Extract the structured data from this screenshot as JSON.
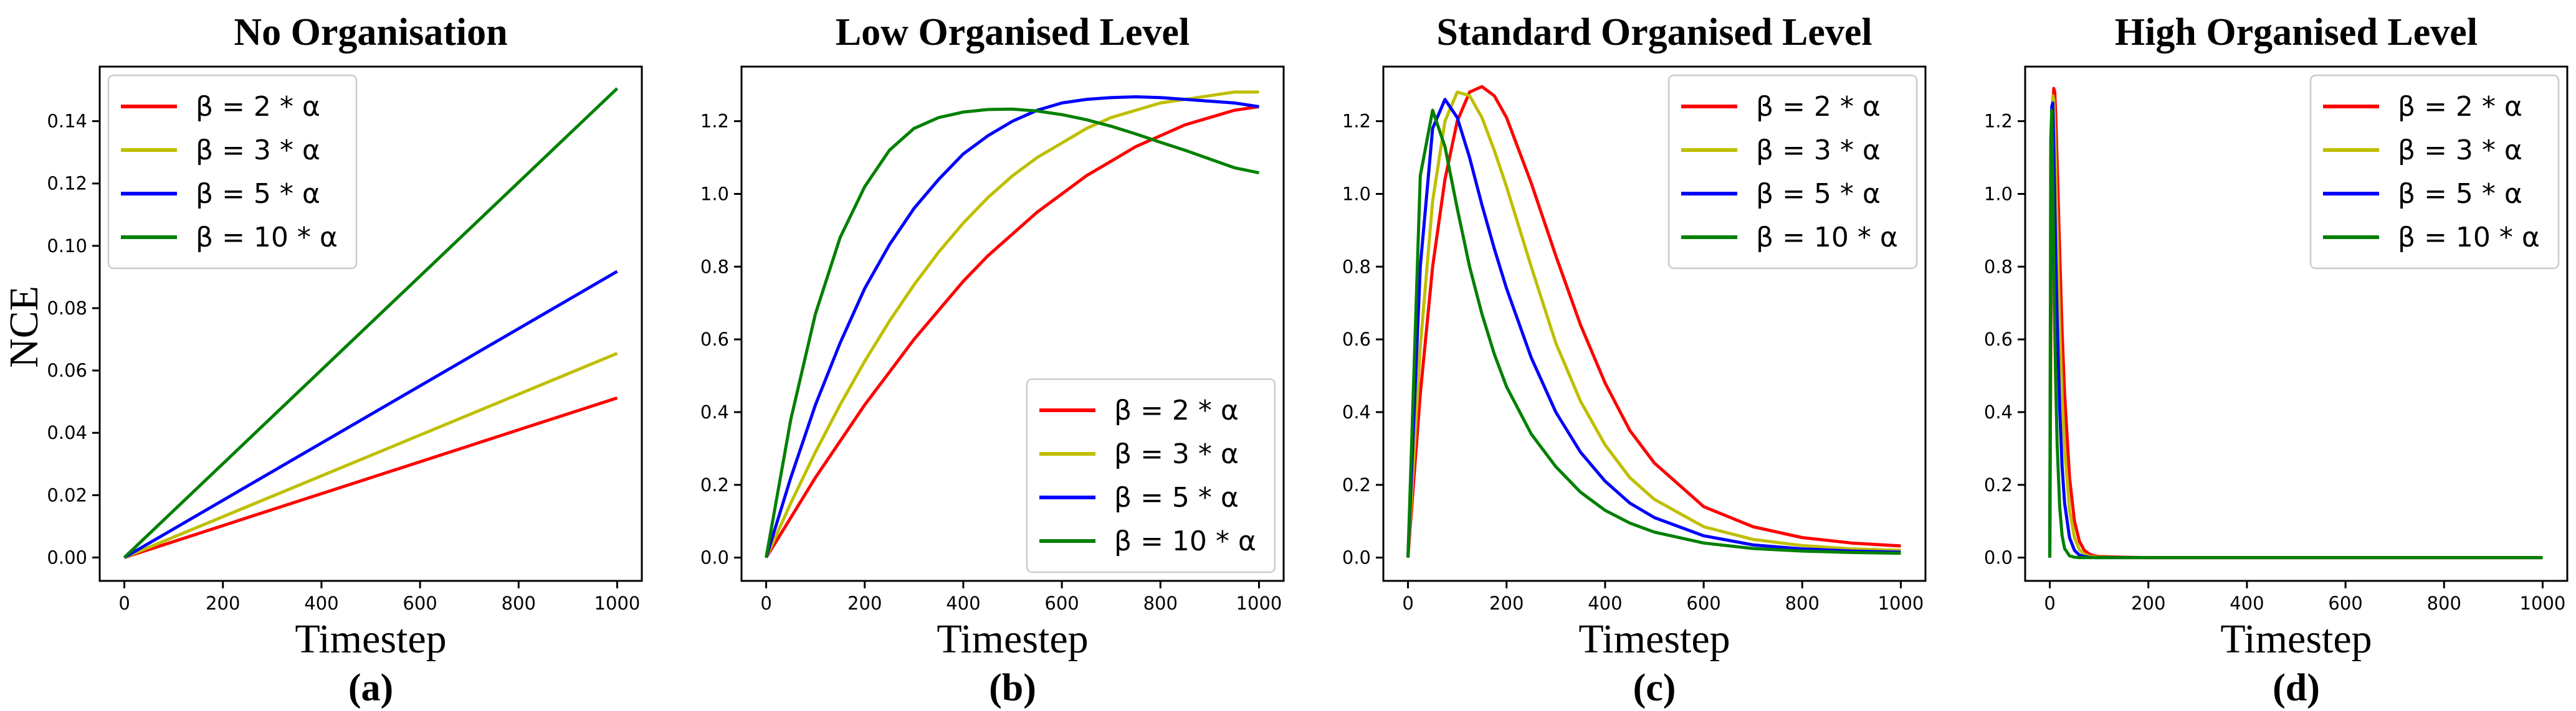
{
  "figure": {
    "ylabel_shared": "NCE"
  },
  "chart_data": [
    {
      "type": "line",
      "title": "No Organisation",
      "xlabel": "Timestep",
      "caption": "(a)",
      "xlim": [
        -50,
        1050
      ],
      "ylim": [
        -0.0075,
        0.1575
      ],
      "xticks": [
        0,
        200,
        400,
        600,
        800,
        1000
      ],
      "xtick_labels": [
        "0",
        "200",
        "400",
        "600",
        "800",
        "1000"
      ],
      "yticks": [
        0.0,
        0.02,
        0.04,
        0.06,
        0.08,
        0.1,
        0.12,
        0.14
      ],
      "ytick_labels": [
        "0.00",
        "0.02",
        "0.04",
        "0.06",
        "0.08",
        "0.10",
        "0.12",
        "0.14"
      ],
      "legend_position": "top-left",
      "x": [
        0,
        1000
      ],
      "series": [
        {
          "name": "β = 2 * α",
          "color": "#ff0000",
          "values": [
            0,
            0.0512
          ]
        },
        {
          "name": "β = 3 * α",
          "color": "#bfbf00",
          "values": [
            0,
            0.0655
          ]
        },
        {
          "name": "β = 5 * α",
          "color": "#0000ff",
          "values": [
            0,
            0.0918
          ]
        },
        {
          "name": "β = 10 * α",
          "color": "#008000",
          "values": [
            0,
            0.1505
          ]
        }
      ]
    },
    {
      "type": "line",
      "title": "Low Organised Level",
      "xlabel": "Timestep",
      "caption": "(b)",
      "xlim": [
        -50,
        1050
      ],
      "ylim": [
        -0.064,
        1.35
      ],
      "xticks": [
        0,
        200,
        400,
        600,
        800,
        1000
      ],
      "xtick_labels": [
        "0",
        "200",
        "400",
        "600",
        "800",
        "1000"
      ],
      "yticks": [
        0.0,
        0.2,
        0.4,
        0.6,
        0.8,
        1.0,
        1.2
      ],
      "ytick_labels": [
        "0.0",
        "0.2",
        "0.4",
        "0.6",
        "0.8",
        "1.0",
        "1.2"
      ],
      "legend_position": "bottom-right",
      "x": [
        0,
        50,
        100,
        150,
        200,
        250,
        300,
        350,
        400,
        450,
        500,
        550,
        600,
        650,
        700,
        750,
        800,
        850,
        900,
        950,
        1000
      ],
      "series": [
        {
          "name": "β = 2 * α",
          "color": "#ff0000",
          "values": [
            0,
            0.11,
            0.22,
            0.32,
            0.42,
            0.51,
            0.6,
            0.68,
            0.76,
            0.83,
            0.89,
            0.95,
            1.0,
            1.05,
            1.09,
            1.13,
            1.16,
            1.19,
            1.21,
            1.23,
            1.24
          ]
        },
        {
          "name": "β = 3 * α",
          "color": "#bfbf00",
          "values": [
            0,
            0.15,
            0.29,
            0.42,
            0.54,
            0.65,
            0.75,
            0.84,
            0.92,
            0.99,
            1.05,
            1.1,
            1.14,
            1.18,
            1.21,
            1.23,
            1.25,
            1.26,
            1.27,
            1.28,
            1.28
          ]
        },
        {
          "name": "β = 5 * α",
          "color": "#0000ff",
          "values": [
            0,
            0.22,
            0.42,
            0.59,
            0.74,
            0.86,
            0.96,
            1.04,
            1.11,
            1.16,
            1.2,
            1.23,
            1.25,
            1.26,
            1.265,
            1.267,
            1.265,
            1.26,
            1.255,
            1.25,
            1.24
          ]
        },
        {
          "name": "β = 10 * α",
          "color": "#008000",
          "values": [
            0,
            0.38,
            0.67,
            0.88,
            1.02,
            1.12,
            1.18,
            1.21,
            1.225,
            1.232,
            1.233,
            1.228,
            1.218,
            1.204,
            1.186,
            1.165,
            1.142,
            1.12,
            1.096,
            1.072,
            1.058
          ]
        }
      ]
    },
    {
      "type": "line",
      "title": "Standard Organised Level",
      "xlabel": "Timestep",
      "caption": "(c)",
      "xlim": [
        -50,
        1050
      ],
      "ylim": [
        -0.064,
        1.35
      ],
      "xticks": [
        0,
        200,
        400,
        600,
        800,
        1000
      ],
      "xtick_labels": [
        "0",
        "200",
        "400",
        "600",
        "800",
        "1000"
      ],
      "yticks": [
        0.0,
        0.2,
        0.4,
        0.6,
        0.8,
        1.0,
        1.2
      ],
      "ytick_labels": [
        "0.0",
        "0.2",
        "0.4",
        "0.6",
        "0.8",
        "1.0",
        "1.2"
      ],
      "legend_position": "top-right",
      "x": [
        0,
        25,
        50,
        75,
        100,
        125,
        150,
        175,
        200,
        250,
        300,
        350,
        400,
        450,
        500,
        600,
        700,
        800,
        900,
        1000
      ],
      "series": [
        {
          "name": "β = 2 * α",
          "color": "#ff0000",
          "values": [
            0,
            0.45,
            0.8,
            1.04,
            1.2,
            1.28,
            1.295,
            1.27,
            1.21,
            1.03,
            0.83,
            0.64,
            0.48,
            0.35,
            0.26,
            0.14,
            0.085,
            0.055,
            0.04,
            0.032
          ]
        },
        {
          "name": "β = 3 * α",
          "color": "#bfbf00",
          "values": [
            0,
            0.58,
            0.98,
            1.2,
            1.28,
            1.27,
            1.21,
            1.12,
            1.02,
            0.8,
            0.59,
            0.43,
            0.31,
            0.22,
            0.16,
            0.085,
            0.05,
            0.033,
            0.024,
            0.02
          ]
        },
        {
          "name": "β = 5 * α",
          "color": "#0000ff",
          "values": [
            0,
            0.8,
            1.18,
            1.26,
            1.21,
            1.1,
            0.97,
            0.85,
            0.74,
            0.55,
            0.4,
            0.29,
            0.21,
            0.15,
            0.11,
            0.06,
            0.035,
            0.024,
            0.018,
            0.015
          ]
        },
        {
          "name": "β = 10 * α",
          "color": "#008000",
          "values": [
            0,
            1.05,
            1.23,
            1.13,
            0.96,
            0.8,
            0.67,
            0.56,
            0.47,
            0.34,
            0.25,
            0.18,
            0.13,
            0.095,
            0.07,
            0.04,
            0.025,
            0.018,
            0.014,
            0.012
          ]
        }
      ]
    },
    {
      "type": "line",
      "title": "High Organised Level",
      "xlabel": "Timestep",
      "caption": "(d)",
      "xlim": [
        -50,
        1050
      ],
      "ylim": [
        -0.064,
        1.35
      ],
      "xticks": [
        0,
        200,
        400,
        600,
        800,
        1000
      ],
      "xtick_labels": [
        "0",
        "200",
        "400",
        "600",
        "800",
        "1000"
      ],
      "yticks": [
        0.0,
        0.2,
        0.4,
        0.6,
        0.8,
        1.0,
        1.2
      ],
      "ytick_labels": [
        "0.0",
        "0.2",
        "0.4",
        "0.6",
        "0.8",
        "1.0",
        "1.2"
      ],
      "legend_position": "top-right",
      "x": [
        0,
        2,
        4,
        6,
        8,
        10,
        12,
        15,
        20,
        25,
        30,
        40,
        50,
        60,
        70,
        80,
        90,
        100,
        150,
        200,
        400,
        600,
        800,
        1000
      ],
      "series": [
        {
          "name": "β = 2 * α",
          "color": "#ff0000",
          "values": [
            0,
            0.55,
            0.98,
            1.22,
            1.29,
            1.28,
            1.22,
            1.08,
            0.84,
            0.62,
            0.45,
            0.22,
            0.1,
            0.045,
            0.02,
            0.01,
            0.005,
            0.003,
            0.001,
            0,
            0,
            0,
            0,
            0
          ]
        },
        {
          "name": "β = 3 * α",
          "color": "#bfbf00",
          "values": [
            0,
            0.68,
            1.12,
            1.27,
            1.26,
            1.18,
            1.07,
            0.9,
            0.64,
            0.44,
            0.3,
            0.13,
            0.055,
            0.022,
            0.009,
            0.004,
            0.002,
            0.001,
            0,
            0,
            0,
            0,
            0,
            0
          ]
        },
        {
          "name": "β = 5 * α",
          "color": "#0000ff",
          "values": [
            0,
            0.88,
            1.24,
            1.25,
            1.13,
            0.98,
            0.84,
            0.65,
            0.41,
            0.25,
            0.15,
            0.055,
            0.02,
            0.007,
            0.003,
            0.001,
            0,
            0,
            0,
            0,
            0,
            0,
            0,
            0
          ]
        },
        {
          "name": "β = 10 * α",
          "color": "#008000",
          "values": [
            0,
            1.15,
            1.23,
            1.04,
            0.82,
            0.63,
            0.48,
            0.31,
            0.14,
            0.06,
            0.025,
            0.005,
            0.001,
            0,
            0,
            0,
            0,
            0,
            0,
            0,
            0,
            0,
            0,
            0
          ]
        }
      ]
    }
  ]
}
